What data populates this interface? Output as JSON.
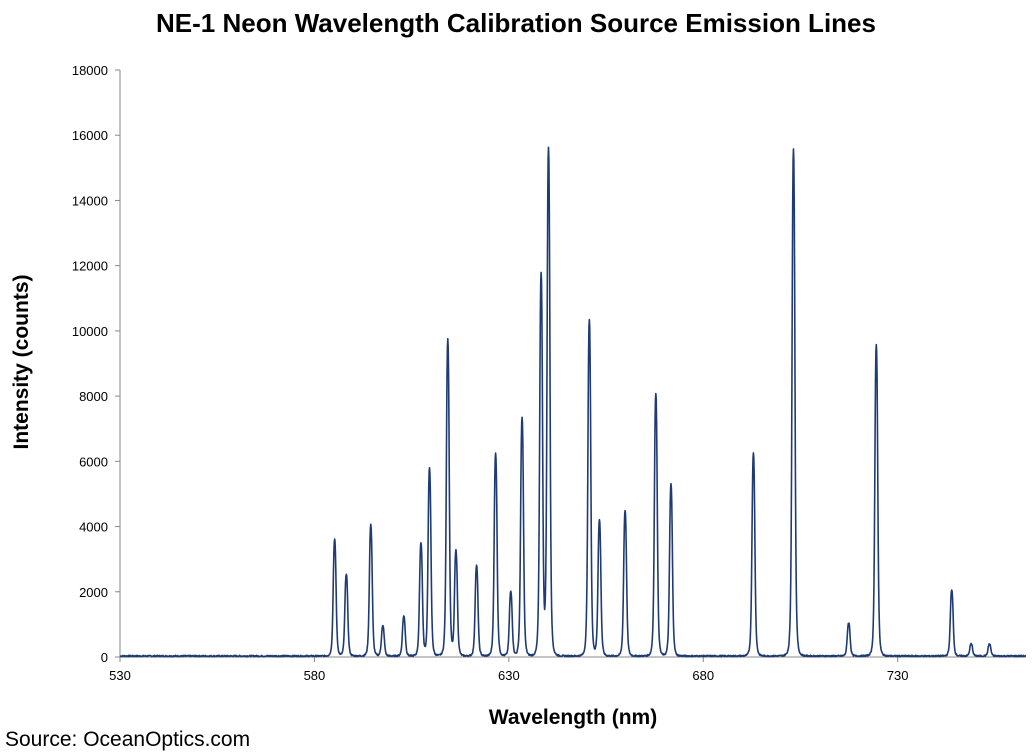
{
  "chart_data": {
    "type": "line",
    "title": "NE-1 Neon Wavelength Calibration Source Emission Lines",
    "xlabel": "Wavelength (nm)",
    "ylabel": "Intensity (counts)",
    "xlim": [
      530,
      763
    ],
    "ylim": [
      0,
      18000
    ],
    "xticks": [
      530,
      580,
      630,
      680,
      730
    ],
    "yticks": [
      0,
      2000,
      4000,
      6000,
      8000,
      10000,
      12000,
      14000,
      16000,
      18000
    ],
    "grid": false,
    "legend": "none",
    "series_color": "#1f3b73",
    "baseline": 30,
    "peaks": [
      {
        "x": 585.2,
        "y": 3600
      },
      {
        "x": 588.2,
        "y": 2550
      },
      {
        "x": 594.5,
        "y": 4050
      },
      {
        "x": 597.6,
        "y": 950
      },
      {
        "x": 603.0,
        "y": 1250
      },
      {
        "x": 607.4,
        "y": 3500
      },
      {
        "x": 609.6,
        "y": 5800
      },
      {
        "x": 614.3,
        "y": 9750
      },
      {
        "x": 616.4,
        "y": 3250
      },
      {
        "x": 621.7,
        "y": 2800
      },
      {
        "x": 626.6,
        "y": 6250
      },
      {
        "x": 630.5,
        "y": 2000
      },
      {
        "x": 633.4,
        "y": 7350
      },
      {
        "x": 638.3,
        "y": 11750
      },
      {
        "x": 640.2,
        "y": 15600
      },
      {
        "x": 650.7,
        "y": 10350
      },
      {
        "x": 653.3,
        "y": 4200
      },
      {
        "x": 659.9,
        "y": 4500
      },
      {
        "x": 667.8,
        "y": 8100
      },
      {
        "x": 671.7,
        "y": 5300
      },
      {
        "x": 692.9,
        "y": 6250
      },
      {
        "x": 703.2,
        "y": 15600
      },
      {
        "x": 717.4,
        "y": 1050
      },
      {
        "x": 724.5,
        "y": 9600
      },
      {
        "x": 743.9,
        "y": 2050
      },
      {
        "x": 748.9,
        "y": 400
      },
      {
        "x": 753.6,
        "y": 400
      }
    ]
  },
  "source_note": "Source: OceanOptics.com"
}
